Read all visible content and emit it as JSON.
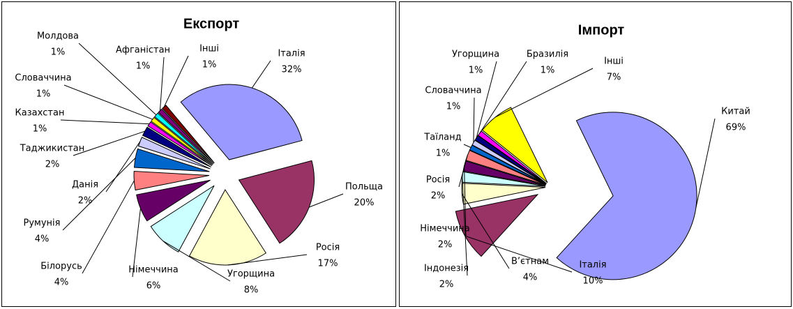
{
  "chart_data": [
    {
      "type": "pie",
      "title": "Експорт",
      "categories": [
        "Італія",
        "Польща",
        "Росія",
        "Угорщина",
        "Німеччина",
        "Білорусь",
        "Румунія",
        "Данія",
        "Таджикистан",
        "Казахстан",
        "Словаччина",
        "Молдова",
        "Афганістан",
        "Інші"
      ],
      "values": [
        32,
        20,
        17,
        8,
        6,
        4,
        4,
        2,
        2,
        1,
        1,
        1,
        1,
        1
      ],
      "value_labels": [
        "32%",
        "20%",
        "17%",
        "8%",
        "6%",
        "4%",
        "4%",
        "2%",
        "2%",
        "1%",
        "1%",
        "1%",
        "1%",
        "1%"
      ],
      "colors": [
        "#9999FF",
        "#993366",
        "#FFFFCC",
        "#CCFFFF",
        "#660066",
        "#FF8080",
        "#0066CC",
        "#CCCCFF",
        "#000080",
        "#FF00FF",
        "#FFFF00",
        "#00FFFF",
        "#800080",
        "#800000"
      ]
    },
    {
      "type": "pie",
      "title": "Імпорт",
      "categories": [
        "Китай",
        "Італія",
        "В’єтнам",
        "Індонезія",
        "Німеччина",
        "Росія",
        "Таїланд",
        "Словаччина",
        "Угорщина",
        "Бразилія",
        "Інші"
      ],
      "values": [
        69,
        10,
        4,
        2,
        2,
        2,
        1,
        1,
        1,
        1,
        7
      ],
      "value_labels": [
        "69%",
        "10%",
        "4%",
        "2%",
        "2%",
        "2%",
        "1%",
        "1%",
        "1%",
        "1%",
        "7%"
      ],
      "colors": [
        "#9999FF",
        "#993366",
        "#FFFFCC",
        "#CCFFFF",
        "#660066",
        "#FF8080",
        "#0066CC",
        "#CCCCFF",
        "#000080",
        "#FF00FF",
        "#FFFF00"
      ]
    }
  ]
}
